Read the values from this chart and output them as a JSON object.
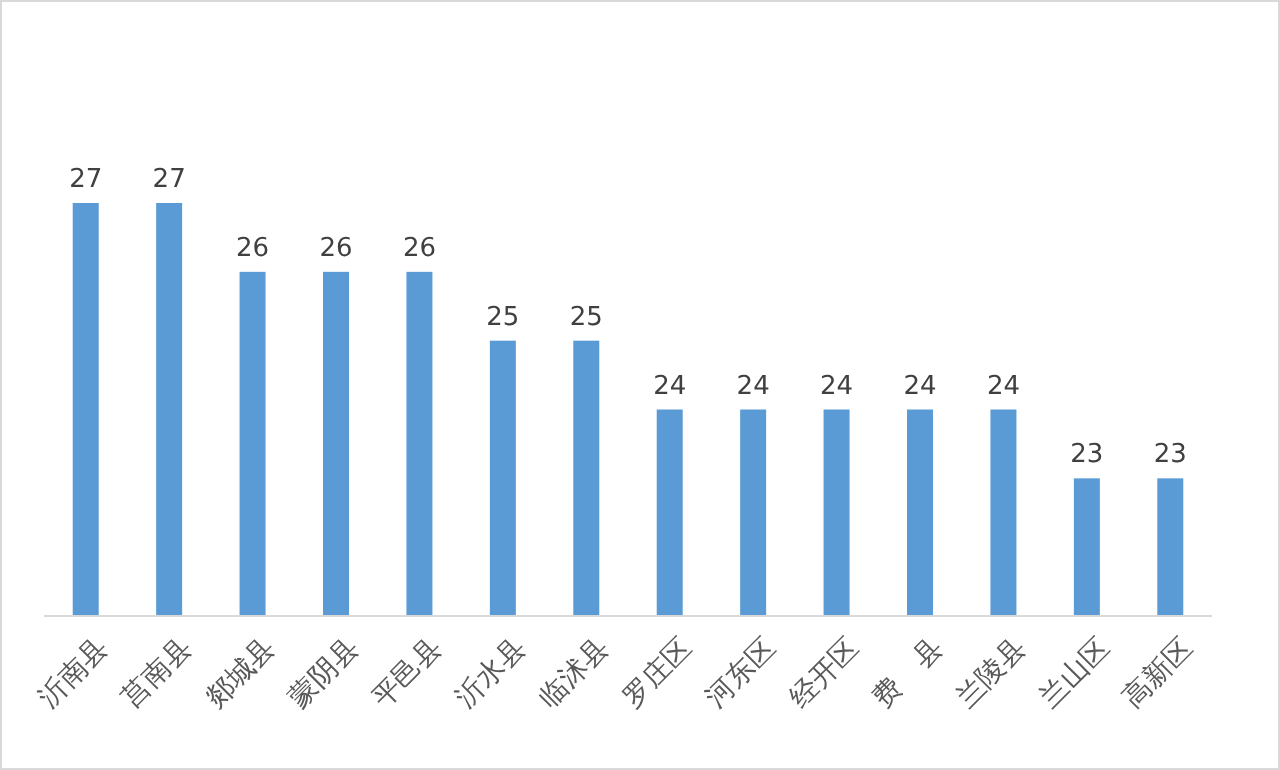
{
  "chart_data": {
    "type": "bar",
    "categories": [
      "沂南县",
      "莒南县",
      "郯城县",
      "蒙阴县",
      "平邑县",
      "沂水县",
      "临沭县",
      "罗庄区",
      "河东区",
      "经开区",
      "费　县",
      "兰陵县",
      "兰山区",
      "高新区"
    ],
    "values": [
      27,
      27,
      26,
      26,
      26,
      25,
      25,
      24,
      24,
      24,
      24,
      24,
      23,
      23
    ],
    "color": "#5b9bd5",
    "ylim": [
      21,
      27
    ],
    "data_labels": true,
    "tick_labels": "x"
  }
}
